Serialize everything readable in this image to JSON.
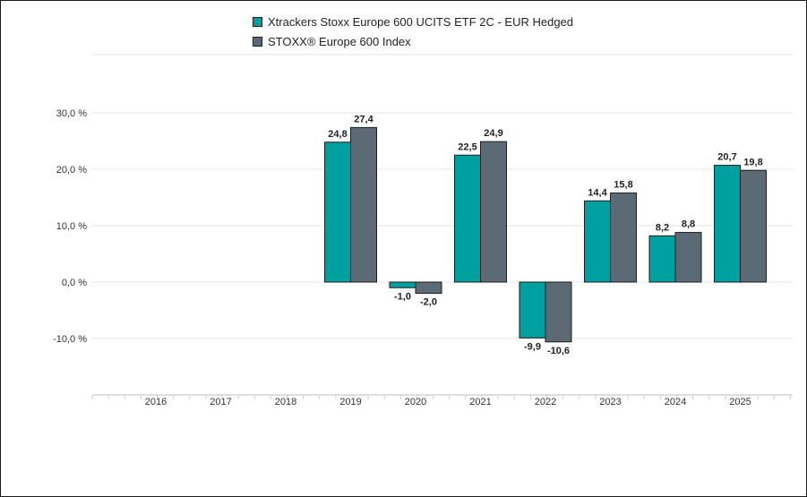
{
  "chart_data": {
    "type": "bar",
    "categories": [
      "2016",
      "2017",
      "2018",
      "2019",
      "2020",
      "2021",
      "2022",
      "2023",
      "2024",
      "2025"
    ],
    "series": [
      {
        "name": "Xtrackers Stoxx Europe 600 UCITS ETF 2C - EUR Hedged",
        "color": "#00a0a0",
        "values": [
          null,
          null,
          null,
          24.8,
          -1.0,
          22.5,
          -9.9,
          14.4,
          8.2,
          20.7
        ],
        "labels": [
          "",
          "",
          "",
          "24,8",
          "-1,0",
          "22,5",
          "-9,9",
          "14,4",
          "8,2",
          "20,7"
        ]
      },
      {
        "name": "STOXX® Europe 600 Index",
        "color": "#5b6a75",
        "values": [
          null,
          null,
          null,
          27.4,
          -2.0,
          24.9,
          -10.6,
          15.8,
          8.8,
          19.8
        ],
        "labels": [
          "",
          "",
          "",
          "27,4",
          "-2,0",
          "24,9",
          "-10,6",
          "15,8",
          "8,8",
          "19,8"
        ]
      }
    ],
    "yticks": [
      -10,
      0,
      10,
      20,
      30
    ],
    "ytick_labels": [
      "-10,0 %",
      "0,0 %",
      "10,0 %",
      "20,0 %",
      "30,0 %"
    ],
    "ylim": [
      -20,
      40
    ],
    "title": "",
    "xlabel": "",
    "ylabel": "",
    "grid": true,
    "legend_position": "top-center"
  }
}
